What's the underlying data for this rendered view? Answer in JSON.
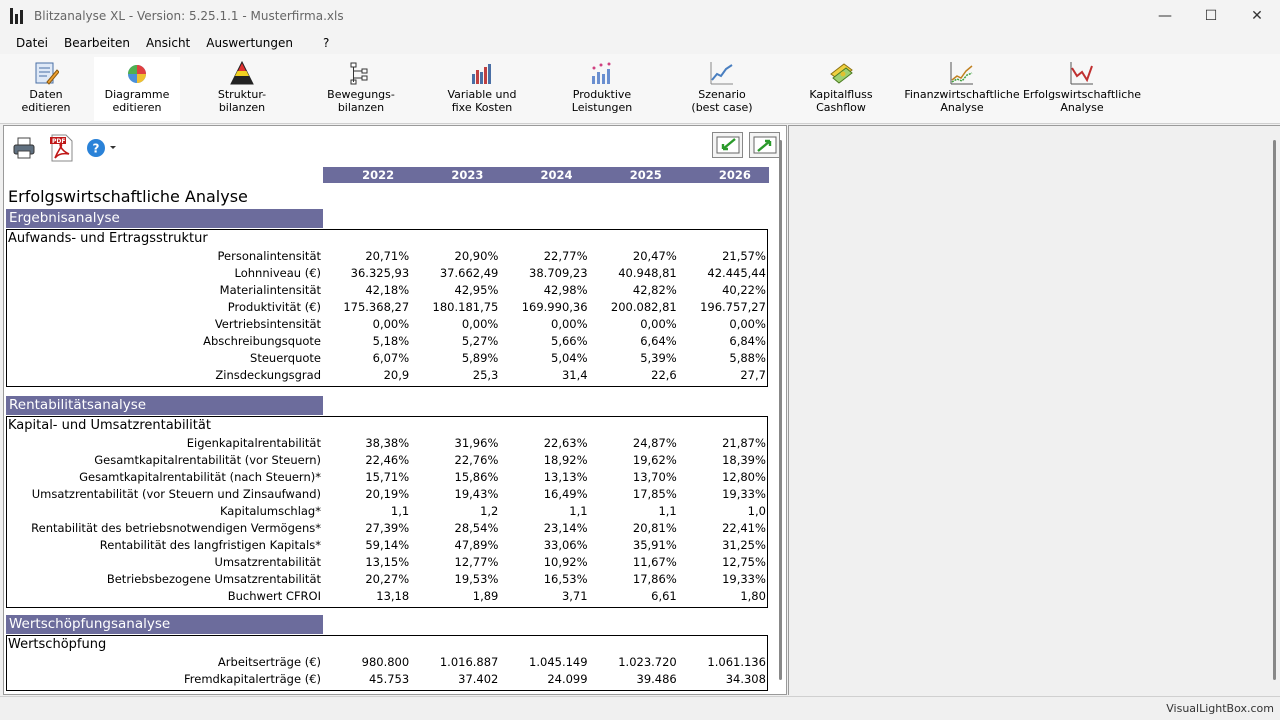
{
  "window": {
    "title": "Blitzanalyse XL - Version: 5.25.1.1 - Musterfirma.xls",
    "minimize": "—",
    "maximize": "☐",
    "close": "✕"
  },
  "menu": [
    "Datei",
    "Bearbeiten",
    "Ansicht",
    "Auswertungen",
    "?"
  ],
  "toolbar": [
    {
      "label": "Daten\neditieren",
      "icon": "data-edit-icon"
    },
    {
      "label": "Diagramme\neditieren",
      "icon": "chart-edit-icon"
    },
    {
      "label": "Struktur-\nbilanzen",
      "icon": "pyramid-icon"
    },
    {
      "label": "Bewegungs-\nbilanzen",
      "icon": "tree-icon"
    },
    {
      "label": "Variable und\nfixe Kosten",
      "icon": "bar-chart-icon"
    },
    {
      "label": "Produktive\nLeistungen",
      "icon": "scatter-icon"
    },
    {
      "label": "Szenario\n(best case)",
      "icon": "line-icon"
    },
    {
      "label": "Kapitalfluss\nCashflow",
      "icon": "money-icon"
    },
    {
      "label": "Finanzwirtschaftliche\nAnalyse",
      "icon": "finance-chart-icon"
    },
    {
      "label": "Erfolgswirtschaftliche\nAnalyse",
      "icon": "success-chart-icon"
    }
  ],
  "report": {
    "title": "Erfolgswirtschaftliche Analyse",
    "years": [
      "2022",
      "2023",
      "2024",
      "2025",
      "2026"
    ],
    "sections": [
      {
        "heading": "Ergebnisanalyse",
        "sub": "Aufwands- und Ertragsstruktur",
        "rows": [
          {
            "label": "Personalintensität",
            "values": [
              "20,71%",
              "20,90%",
              "22,77%",
              "20,47%",
              "21,57%"
            ]
          },
          {
            "label": "Lohnniveau (€)",
            "values": [
              "36.325,93",
              "37.662,49",
              "38.709,23",
              "40.948,81",
              "42.445,44"
            ]
          },
          {
            "label": "Materialintensität",
            "values": [
              "42,18%",
              "42,95%",
              "42,98%",
              "42,82%",
              "40,22%"
            ]
          },
          {
            "label": "Produktivität (€)",
            "values": [
              "175.368,27",
              "180.181,75",
              "169.990,36",
              "200.082,81",
              "196.757,27"
            ]
          },
          {
            "label": "Vertriebsintensität",
            "values": [
              "0,00%",
              "0,00%",
              "0,00%",
              "0,00%",
              "0,00%"
            ]
          },
          {
            "label": "Abschreibungsquote",
            "values": [
              "5,18%",
              "5,27%",
              "5,66%",
              "6,64%",
              "6,84%"
            ]
          },
          {
            "label": "Steuerquote",
            "values": [
              "6,07%",
              "5,89%",
              "5,04%",
              "5,39%",
              "5,88%"
            ]
          },
          {
            "label": "Zinsdeckungsgrad",
            "values": [
              "20,9",
              "25,3",
              "31,4",
              "22,6",
              "27,7"
            ]
          }
        ]
      },
      {
        "heading": "Rentabilitätsanalyse",
        "sub": "Kapital- und Umsatzrentabilität",
        "rows": [
          {
            "label": "Eigenkapitalrentabilität",
            "values": [
              "38,38%",
              "31,96%",
              "22,63%",
              "24,87%",
              "21,87%"
            ]
          },
          {
            "label": "Gesamtkapitalrentabilität (vor Steuern)",
            "values": [
              "22,46%",
              "22,76%",
              "18,92%",
              "19,62%",
              "18,39%"
            ]
          },
          {
            "label": "Gesamtkapitalrentabilität (nach Steuern)*",
            "values": [
              "15,71%",
              "15,86%",
              "13,13%",
              "13,70%",
              "12,80%"
            ]
          },
          {
            "label": "Umsatzrentabilität (vor Steuern und Zinsaufwand)",
            "values": [
              "20,19%",
              "19,43%",
              "16,49%",
              "17,85%",
              "19,33%"
            ]
          },
          {
            "label": "Kapitalumschlag*",
            "values": [
              "1,1",
              "1,2",
              "1,1",
              "1,1",
              "1,0"
            ]
          },
          {
            "label": "Rentabilität des betriebsnotwendigen Vermögens*",
            "values": [
              "27,39%",
              "28,54%",
              "23,14%",
              "20,81%",
              "22,41%"
            ]
          },
          {
            "label": "Rentabilität des langfristigen Kapitals*",
            "values": [
              "59,14%",
              "47,89%",
              "33,06%",
              "35,91%",
              "31,25%"
            ]
          },
          {
            "label": "Umsatzrentabilität",
            "values": [
              "13,15%",
              "12,77%",
              "10,92%",
              "11,67%",
              "12,75%"
            ]
          },
          {
            "label": "Betriebsbezogene Umsatzrentabilität",
            "values": [
              "20,27%",
              "19,53%",
              "16,53%",
              "17,86%",
              "19,33%"
            ]
          },
          {
            "label": "Buchwert CFROI",
            "values": [
              "13,18",
              "1,89",
              "3,71",
              "6,61",
              "1,80"
            ]
          }
        ]
      },
      {
        "heading": "Wertschöpfungsanalyse",
        "sub": "Wertschöpfung",
        "rows": [
          {
            "label": "Arbeitserträge (€)",
            "values": [
              "980.800",
              "1.016.887",
              "1.045.149",
              "1.023.720",
              "1.061.136"
            ]
          },
          {
            "label": "Fremdkapitalerträge (€)",
            "values": [
              "45.753",
              "37.402",
              "24.099",
              "39.486",
              "34.308"
            ]
          }
        ]
      }
    ]
  },
  "status": {
    "text": "VisualLightBox.com"
  },
  "colors": {
    "header_band": "#6c6c9c"
  }
}
